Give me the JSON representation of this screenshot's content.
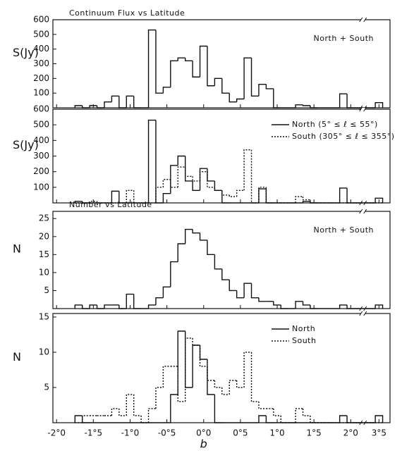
{
  "chart_data": [
    {
      "type": "histogram",
      "title": "Continuum Flux vs Latitude",
      "annotation": "North + South",
      "y_label": "S(Jy)",
      "bins": [
        -1.75,
        -1.65,
        -1.55,
        -1.45,
        -1.35,
        -1.25,
        -1.15,
        -1.05,
        -0.95,
        -0.85,
        -0.75,
        -0.65,
        -0.55,
        -0.45,
        -0.35,
        -0.25,
        -0.15,
        -0.05,
        0.05,
        0.15,
        0.25,
        0.35,
        0.45,
        0.55,
        0.65,
        0.75,
        0.85,
        0.95,
        1.05,
        1.15,
        1.25,
        1.35,
        1.45,
        1.55,
        1.65,
        1.75,
        1.85,
        1.95,
        3.45,
        3.55
      ],
      "series": [
        {
          "color": "#111111",
          "dash": "solid",
          "values": [
            15,
            0,
            15,
            0,
            40,
            80,
            0,
            80,
            0,
            0,
            530,
            100,
            140,
            320,
            340,
            320,
            210,
            420,
            150,
            200,
            100,
            40,
            60,
            340,
            80,
            160,
            130,
            0,
            0,
            0,
            20,
            15,
            0,
            0,
            0,
            0,
            95,
            0,
            35
          ]
        }
      ],
      "xlim": [
        -2.05,
        3.65
      ],
      "x_break": [
        2.1,
        3.35
      ],
      "ylim": [
        0,
        600
      ],
      "yticks": [
        100,
        200,
        300,
        400,
        500,
        600
      ]
    },
    {
      "type": "histogram",
      "y_label": "S(Jy)",
      "bins": [
        -1.75,
        -1.65,
        -1.55,
        -1.45,
        -1.35,
        -1.25,
        -1.15,
        -1.05,
        -0.95,
        -0.85,
        -0.75,
        -0.65,
        -0.55,
        -0.45,
        -0.35,
        -0.25,
        -0.15,
        -0.05,
        0.05,
        0.15,
        0.25,
        0.35,
        0.45,
        0.55,
        0.65,
        0.75,
        0.85,
        0.95,
        1.05,
        1.15,
        1.25,
        1.35,
        1.45,
        1.55,
        1.65,
        1.75,
        1.85,
        1.95,
        3.45,
        3.55
      ],
      "series": [
        {
          "name": "North (5° ≤ ℓ ≤ 55°)",
          "color": "#111111",
          "dash": "solid",
          "values": [
            10,
            0,
            0,
            0,
            0,
            75,
            0,
            0,
            0,
            0,
            530,
            0,
            60,
            240,
            300,
            140,
            80,
            220,
            140,
            80,
            0,
            0,
            0,
            0,
            0,
            90,
            0,
            0,
            0,
            0,
            0,
            10,
            0,
            0,
            0,
            0,
            95,
            0,
            30
          ]
        },
        {
          "name": "South (305° ≤ ℓ ≤ 355°)",
          "color": "#111111",
          "dash": "dotted",
          "values": [
            0,
            0,
            10,
            0,
            0,
            0,
            0,
            80,
            0,
            0,
            0,
            100,
            150,
            100,
            230,
            170,
            140,
            200,
            100,
            80,
            50,
            40,
            80,
            340,
            0,
            100,
            0,
            0,
            0,
            0,
            40,
            20,
            0,
            0,
            0,
            0,
            0,
            0,
            0
          ]
        }
      ],
      "xlim": [
        -2.05,
        3.65
      ],
      "x_break": [
        2.1,
        3.35
      ],
      "ylim": [
        0,
        600
      ],
      "yticks": [
        100,
        200,
        300,
        400,
        500,
        600
      ],
      "legend": "upper-right"
    },
    {
      "type": "histogram",
      "title": "Number vs Latitude",
      "annotation": "North + South",
      "y_label": "N",
      "bins": [
        -1.75,
        -1.65,
        -1.55,
        -1.45,
        -1.35,
        -1.25,
        -1.15,
        -1.05,
        -0.95,
        -0.85,
        -0.75,
        -0.65,
        -0.55,
        -0.45,
        -0.35,
        -0.25,
        -0.15,
        -0.05,
        0.05,
        0.15,
        0.25,
        0.35,
        0.45,
        0.55,
        0.65,
        0.75,
        0.85,
        0.95,
        1.05,
        1.15,
        1.25,
        1.35,
        1.45,
        1.55,
        1.65,
        1.75,
        1.85,
        1.95,
        3.45,
        3.55
      ],
      "series": [
        {
          "color": "#111111",
          "dash": "solid",
          "values": [
            1,
            0,
            1,
            0,
            1,
            1,
            0,
            4,
            0,
            0,
            1,
            3,
            6,
            13,
            18,
            22,
            21,
            19,
            15,
            11,
            8,
            5,
            3,
            7,
            3,
            2,
            2,
            1,
            0,
            0,
            2,
            1,
            0,
            0,
            0,
            0,
            1,
            0,
            1
          ]
        }
      ],
      "xlim": [
        -2.05,
        3.65
      ],
      "x_break": [
        2.1,
        3.35
      ],
      "ylim": [
        0,
        27
      ],
      "yticks": [
        5,
        10,
        15,
        20,
        25
      ]
    },
    {
      "type": "histogram",
      "y_label": "N",
      "x_label": "b",
      "bins": [
        -1.75,
        -1.65,
        -1.55,
        -1.45,
        -1.35,
        -1.25,
        -1.15,
        -1.05,
        -0.95,
        -0.85,
        -0.75,
        -0.65,
        -0.55,
        -0.45,
        -0.35,
        -0.25,
        -0.15,
        -0.05,
        0.05,
        0.15,
        0.25,
        0.35,
        0.45,
        0.55,
        0.65,
        0.75,
        0.85,
        0.95,
        1.05,
        1.15,
        1.25,
        1.35,
        1.45,
        1.55,
        1.65,
        1.75,
        1.85,
        1.95,
        3.45,
        3.55
      ],
      "series": [
        {
          "name": "North",
          "color": "#111111",
          "dash": "solid",
          "values": [
            1,
            0,
            0,
            0,
            0,
            0,
            0,
            0,
            0,
            0,
            0,
            0,
            0,
            4,
            13,
            5,
            11,
            9,
            4,
            0,
            0,
            0,
            0,
            0,
            0,
            1,
            0,
            0,
            0,
            0,
            0,
            0,
            0,
            0,
            0,
            0,
            1,
            0,
            1
          ]
        },
        {
          "name": "South",
          "color": "#111111",
          "dash": "dotted",
          "values": [
            0,
            1,
            1,
            1,
            1,
            2,
            1,
            4,
            1,
            0,
            2,
            5,
            8,
            8,
            3,
            12,
            11,
            8,
            6,
            5,
            4,
            6,
            5,
            10,
            3,
            2,
            2,
            1,
            0,
            0,
            2,
            1,
            0,
            0,
            0,
            0,
            0,
            0,
            0
          ]
        }
      ],
      "xlim": [
        -2.05,
        3.65
      ],
      "x_break": [
        2.1,
        3.35
      ],
      "ylim": [
        0,
        15.5
      ],
      "yticks": [
        5,
        10,
        15
      ],
      "legend": "upper-right",
      "xticks": [
        {
          "value": -2.0,
          "label": "-2°0"
        },
        {
          "value": -1.5,
          "label": "-1°5"
        },
        {
          "value": -1.0,
          "label": "-1°0"
        },
        {
          "value": -0.5,
          "label": "-0°5"
        },
        {
          "value": 0.0,
          "label": "0°0"
        },
        {
          "value": 0.5,
          "label": "0°5"
        },
        {
          "value": 1.0,
          "label": "1°0"
        },
        {
          "value": 1.5,
          "label": "1°5"
        },
        {
          "value": 2.0,
          "label": "2°0"
        },
        {
          "value": 3.5,
          "label": "3°5"
        }
      ]
    }
  ]
}
